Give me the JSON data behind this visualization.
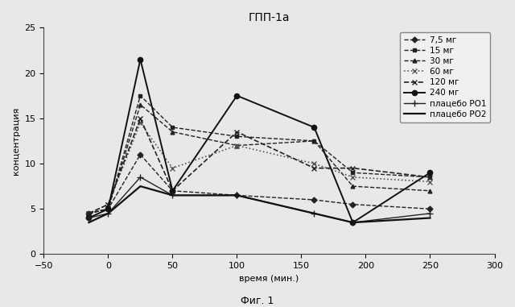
{
  "title": "ГПП-1а",
  "xlabel": "время (мин.)",
  "ylabel": "концентрация",
  "caption": "Фиг. 1",
  "xlim": [
    -50,
    300
  ],
  "ylim": [
    0,
    25
  ],
  "xticks": [
    -50,
    0,
    50,
    100,
    150,
    200,
    250,
    300
  ],
  "yticks": [
    0,
    5,
    10,
    15,
    20,
    25
  ],
  "series": [
    {
      "label": "7,5 мг",
      "x": [
        -15,
        0,
        25,
        50,
        100,
        160,
        190,
        250
      ],
      "y": [
        4.5,
        5.0,
        11.0,
        7.0,
        6.5,
        6.0,
        5.5,
        5.0
      ],
      "color": "#222222",
      "linestyle": "--",
      "marker": "D",
      "markersize": 3.5,
      "linewidth": 1.0,
      "dashes": [
        5,
        3
      ]
    },
    {
      "label": "15 мг",
      "x": [
        -15,
        0,
        25,
        50,
        100,
        160,
        190,
        250
      ],
      "y": [
        4.5,
        5.0,
        17.5,
        14.0,
        13.0,
        12.5,
        9.0,
        8.5
      ],
      "color": "#222222",
      "linestyle": "--",
      "marker": "s",
      "markersize": 3.5,
      "linewidth": 1.0,
      "dashes": [
        5,
        3
      ]
    },
    {
      "label": "30 мг",
      "x": [
        -15,
        0,
        25,
        50,
        100,
        160,
        190,
        250
      ],
      "y": [
        4.5,
        5.0,
        16.5,
        13.5,
        12.0,
        12.5,
        7.5,
        7.0
      ],
      "color": "#222222",
      "linestyle": "--",
      "marker": "^",
      "markersize": 3.5,
      "linewidth": 1.0,
      "dashes": [
        6,
        2
      ]
    },
    {
      "label": "60 мг",
      "x": [
        -15,
        0,
        25,
        50,
        100,
        160,
        190,
        250
      ],
      "y": [
        4.5,
        5.5,
        14.5,
        9.5,
        12.0,
        10.0,
        8.5,
        8.0
      ],
      "color": "#555555",
      "linestyle": ":",
      "marker": "x",
      "markersize": 4.5,
      "linewidth": 1.2,
      "dashes": null
    },
    {
      "label": "120 мг",
      "x": [
        -15,
        0,
        25,
        50,
        100,
        160,
        190,
        250
      ],
      "y": [
        4.5,
        5.5,
        15.0,
        7.0,
        13.5,
        9.5,
        9.5,
        8.5
      ],
      "color": "#222222",
      "linestyle": "--",
      "marker": "x",
      "markersize": 4.5,
      "linewidth": 1.2,
      "dashes": [
        5,
        3
      ]
    },
    {
      "label": "240 мг",
      "x": [
        -15,
        0,
        25,
        50,
        100,
        160,
        190,
        250
      ],
      "y": [
        4.0,
        5.0,
        21.5,
        7.0,
        17.5,
        14.0,
        3.5,
        9.0
      ],
      "color": "#111111",
      "linestyle": "-",
      "marker": "o",
      "markersize": 4.5,
      "linewidth": 1.4,
      "dashes": null
    },
    {
      "label": "плацебо РО1",
      "x": [
        -15,
        0,
        25,
        50,
        100,
        160,
        190,
        250
      ],
      "y": [
        4.0,
        4.5,
        8.5,
        6.5,
        6.5,
        4.5,
        3.5,
        4.5
      ],
      "color": "#222222",
      "linestyle": "-",
      "marker": "+",
      "markersize": 5.5,
      "linewidth": 1.0,
      "dashes": null
    },
    {
      "label": "плацебо РО2",
      "x": [
        -15,
        0,
        25,
        50,
        100,
        160,
        190,
        250
      ],
      "y": [
        3.5,
        4.5,
        7.5,
        6.5,
        6.5,
        4.5,
        3.5,
        4.0
      ],
      "color": "#111111",
      "linestyle": "-",
      "marker": null,
      "markersize": 4,
      "linewidth": 1.6,
      "dashes": null
    }
  ],
  "background_color": "#e8e8e8",
  "plot_bg_color": "#e8e8e8",
  "legend_fontsize": 7.5,
  "title_fontsize": 10,
  "axis_label_fontsize": 8,
  "tick_labelsize": 8,
  "caption_fontsize": 9
}
